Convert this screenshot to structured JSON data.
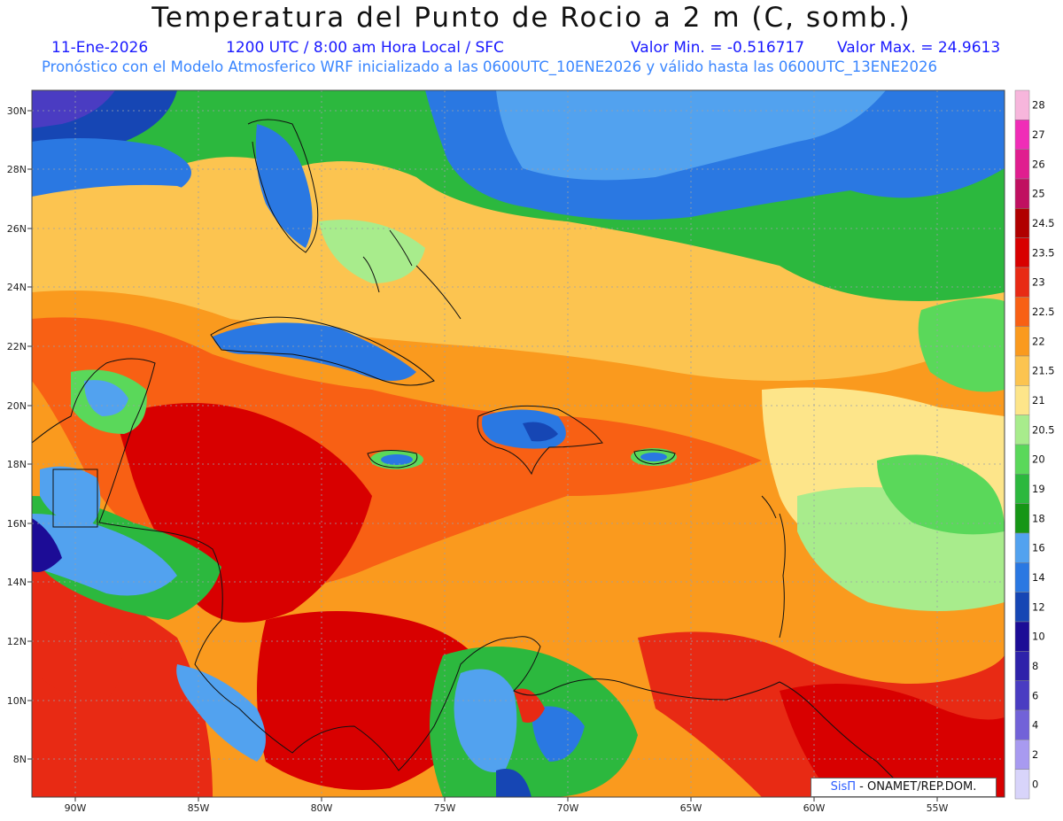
{
  "header": {
    "title": "Temperatura del Punto de Rocio a 2 m (C, somb.)",
    "date": "11-Ene-2026",
    "time": "1200 UTC / 8:00 am Hora Local / SFC",
    "min_value": "Valor Min. = -0.516717",
    "max_value": "Valor Max. = 24.9613",
    "description": "Pronóstico con el Modelo Atmosferico WRF inicializado a las 0600UTC_10ENE2026 y válido hasta las  0600UTC_13ENE2026"
  },
  "axes": {
    "lat_labels": [
      "30N",
      "28N",
      "26N",
      "24N",
      "22N",
      "20N",
      "18N",
      "16N",
      "14N",
      "12N",
      "10N",
      "8N"
    ],
    "lon_labels": [
      "90W",
      "85W",
      "80W",
      "75W",
      "70W",
      "65W",
      "60W",
      "55W"
    ]
  },
  "legend": {
    "levels": [
      {
        "label": "28",
        "color": "#f7b6dc"
      },
      {
        "label": "27",
        "color": "#f02db7"
      },
      {
        "label": "26",
        "color": "#e01e8f"
      },
      {
        "label": "25",
        "color": "#c01060"
      },
      {
        "label": "24.5",
        "color": "#b00000"
      },
      {
        "label": "23.5",
        "color": "#d80000"
      },
      {
        "label": "23",
        "color": "#e82a14"
      },
      {
        "label": "22.5",
        "color": "#f86014"
      },
      {
        "label": "22",
        "color": "#fa9a1e"
      },
      {
        "label": "21.5",
        "color": "#fcc450"
      },
      {
        "label": "21",
        "color": "#fde58a"
      },
      {
        "label": "20.5",
        "color": "#a8ec8c"
      },
      {
        "label": "20",
        "color": "#5ad85a"
      },
      {
        "label": "19",
        "color": "#2cb83e"
      },
      {
        "label": "18",
        "color": "#169616"
      },
      {
        "label": "16",
        "color": "#52a2ef"
      },
      {
        "label": "14",
        "color": "#2a78e2"
      },
      {
        "label": "12",
        "color": "#1646b4"
      },
      {
        "label": "10",
        "color": "#1c0c96"
      },
      {
        "label": "8",
        "color": "#2e22aa"
      },
      {
        "label": "6",
        "color": "#4a3cc2"
      },
      {
        "label": "4",
        "color": "#7262d8"
      },
      {
        "label": "2",
        "color": "#a89af0"
      },
      {
        "label": "0",
        "color": "#d8d4fa"
      }
    ]
  },
  "credit": {
    "brand": "SisΠ",
    "text": " - ONAMET/REP.DOM."
  }
}
